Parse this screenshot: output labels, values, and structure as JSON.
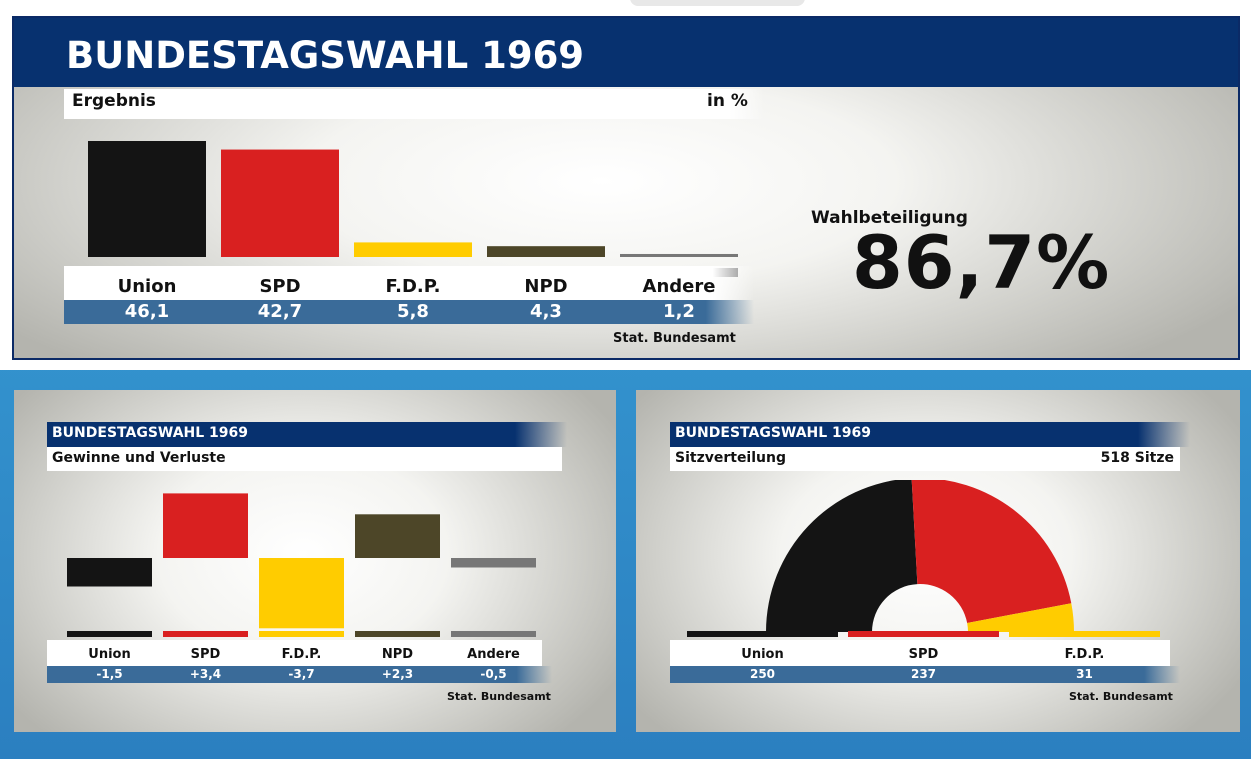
{
  "main": {
    "title": "BUNDESTAGSWAHL 1969",
    "subtitle": "Ergebnis",
    "unit": "in %",
    "source": "Stat. Bundesamt",
    "turnout_label": "Wahlbeteiligung",
    "turnout_value": "86,7%"
  },
  "gains": {
    "title": "BUNDESTAGSWAHL 1969",
    "subtitle": "Gewinne und Verluste",
    "source": "Stat. Bundesamt"
  },
  "seats": {
    "title": "BUNDESTAGSWAHL 1969",
    "subtitle": "Sitzverteilung",
    "total": "518 Sitze",
    "source": "Stat. Bundesamt"
  },
  "chart_data": [
    {
      "type": "bar",
      "title": "BUNDESTAGSWAHL 1969",
      "subtitle": "Ergebnis",
      "unit": "in %",
      "categories": [
        "Union",
        "SPD",
        "F.D.P.",
        "NPD",
        "Andere"
      ],
      "values": [
        46.1,
        42.7,
        5.8,
        4.3,
        1.2
      ],
      "value_labels": [
        "46,1",
        "42,7",
        "5,8",
        "4,3",
        "1,2"
      ],
      "colors": [
        "#141414",
        "#d92020",
        "#ffcc00",
        "#4d4628",
        "#777777"
      ]
    },
    {
      "type": "bar",
      "title": "BUNDESTAGSWAHL 1969",
      "subtitle": "Gewinne und Verluste",
      "categories": [
        "Union",
        "SPD",
        "F.D.P.",
        "NPD",
        "Andere"
      ],
      "values": [
        -1.5,
        3.4,
        -3.7,
        2.3,
        -0.5
      ],
      "value_labels": [
        "-1,5",
        "+3,4",
        "-3,7",
        "+2,3",
        "-0,5"
      ],
      "colors": [
        "#141414",
        "#d92020",
        "#ffcc00",
        "#4d4628",
        "#777777"
      ]
    },
    {
      "type": "pie",
      "title": "BUNDESTAGSWAHL 1969",
      "subtitle": "Sitzverteilung",
      "total_label": "518 Sitze",
      "categories": [
        "Union",
        "SPD",
        "F.D.P."
      ],
      "values": [
        250,
        237,
        31
      ],
      "value_labels": [
        "250",
        "237",
        "31"
      ],
      "colors": [
        "#141414",
        "#d92020",
        "#ffcc00"
      ]
    }
  ]
}
